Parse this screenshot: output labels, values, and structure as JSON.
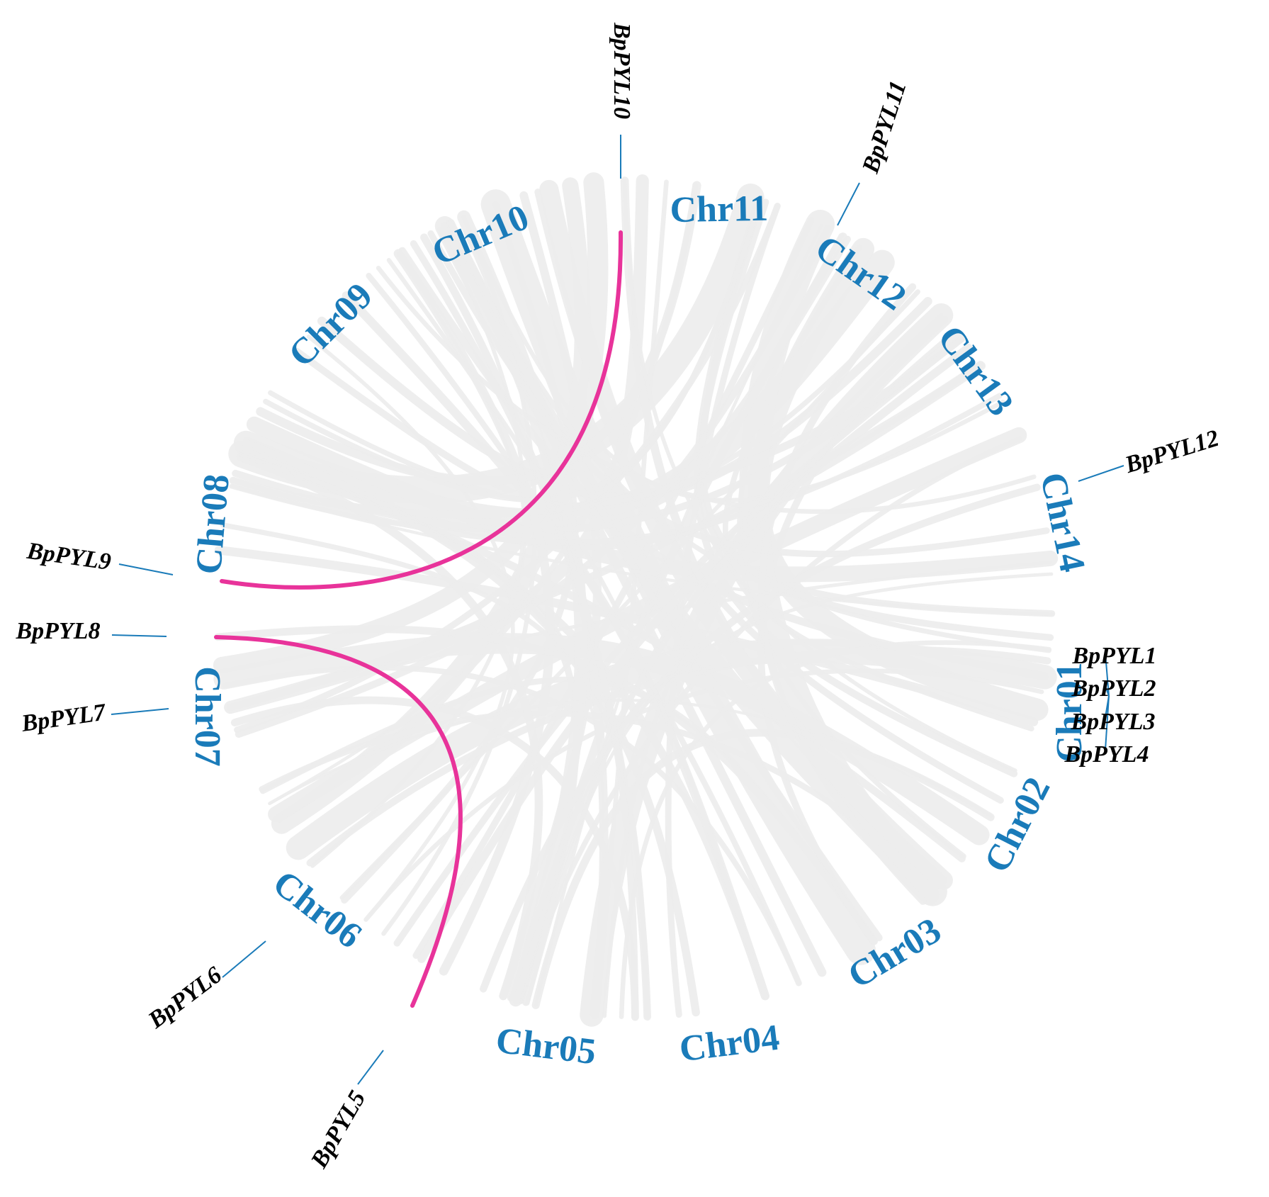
{
  "colors": {
    "background": "#ffffff",
    "chromosome_label": "#1a7bb9",
    "gene_label": "#000000",
    "leader_line": "#1a7bb9",
    "synteny_link": "#ececec",
    "duplicated_pair": "#e8339a"
  },
  "chromosomes": [
    "Chr01",
    "Chr02",
    "Chr03",
    "Chr04",
    "Chr05",
    "Chr06",
    "Chr07",
    "Chr08",
    "Chr09",
    "Chr10",
    "Chr11",
    "Chr12",
    "Chr13",
    "Chr14"
  ],
  "genes": [
    {
      "name": "BpPYL1",
      "chromosome": "Chr01"
    },
    {
      "name": "BpPYL2",
      "chromosome": "Chr01"
    },
    {
      "name": "BpPYL3",
      "chromosome": "Chr01"
    },
    {
      "name": "BpPYL4",
      "chromosome": "Chr01"
    },
    {
      "name": "BpPYL5",
      "chromosome": "Chr06"
    },
    {
      "name": "BpPYL6",
      "chromosome": "Chr06"
    },
    {
      "name": "BpPYL7",
      "chromosome": "Chr07"
    },
    {
      "name": "BpPYL8",
      "chromosome": "Chr08"
    },
    {
      "name": "BpPYL9",
      "chromosome": "Chr08"
    },
    {
      "name": "BpPYL10",
      "chromosome": "Chr11"
    },
    {
      "name": "BpPYL11",
      "chromosome": "Chr12"
    },
    {
      "name": "BpPYL12",
      "chromosome": "Chr14"
    }
  ],
  "segmental_duplications": [
    {
      "gene_a": "BpPYL9",
      "gene_b": "BpPYL10"
    },
    {
      "gene_a": "BpPYL8",
      "gene_b": "BpPYL5"
    }
  ]
}
